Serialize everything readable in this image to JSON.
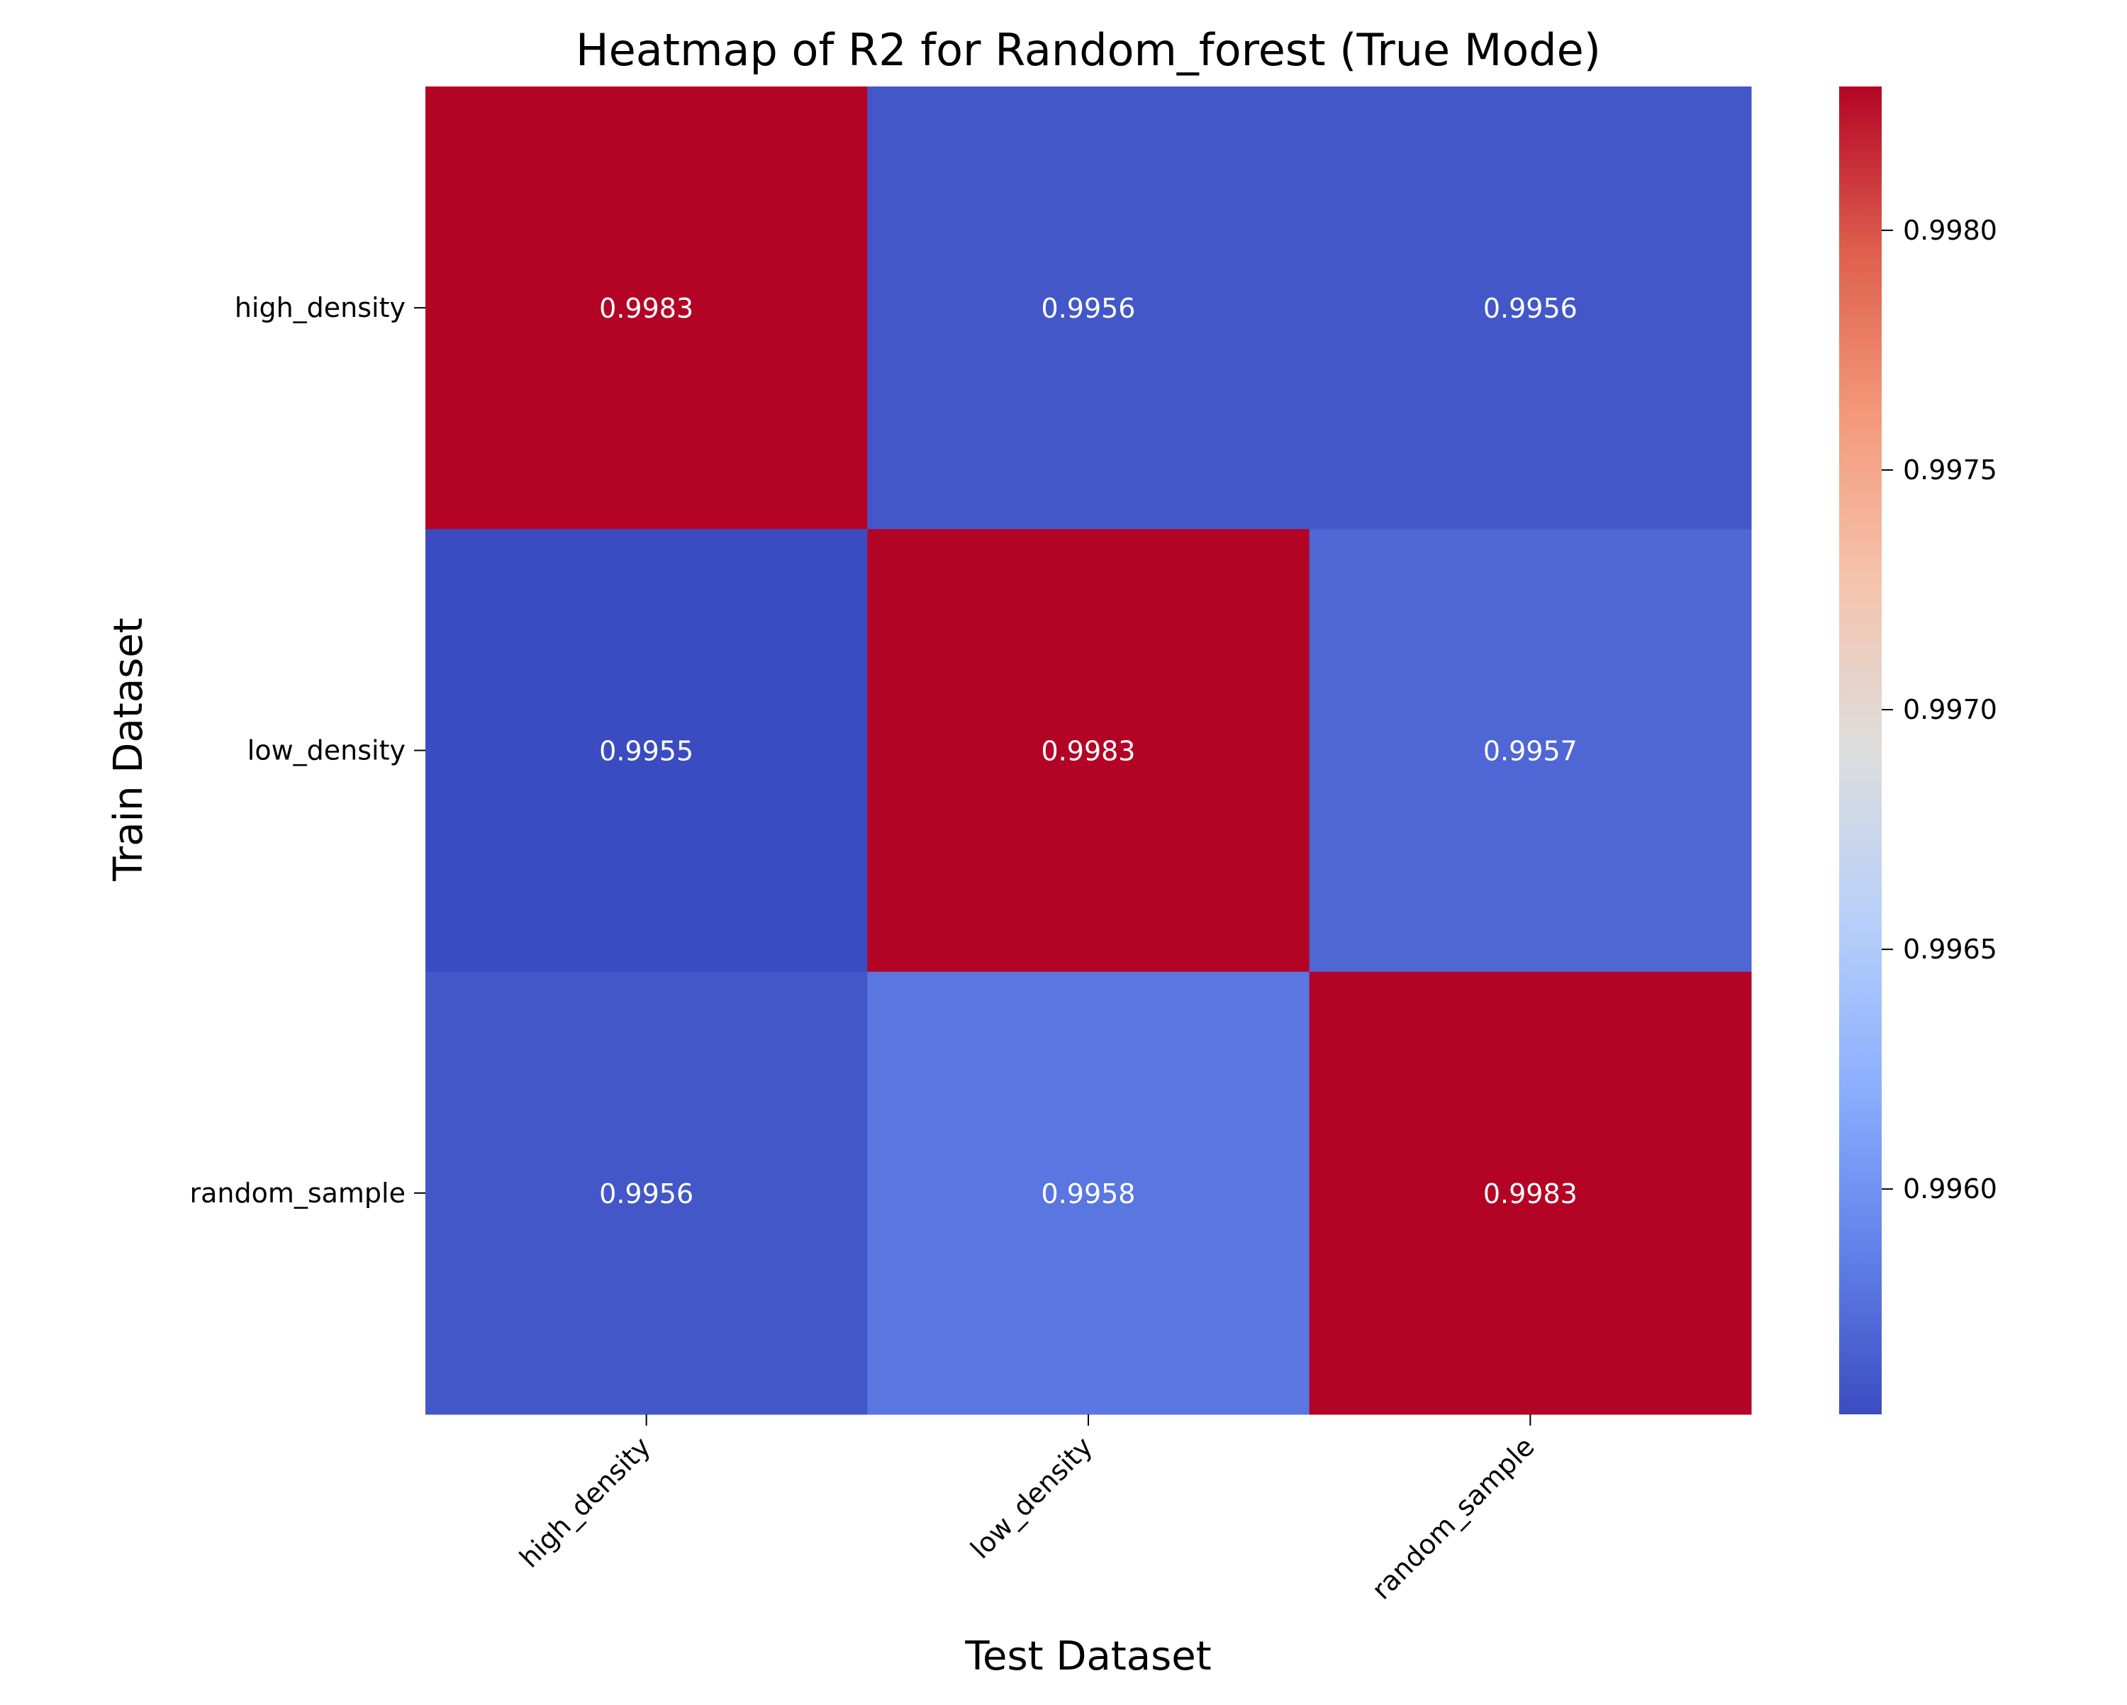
{
  "chart_data": {
    "type": "heatmap",
    "title": "Heatmap of R2 for Random_forest (True Mode)",
    "xlabel": "Test Dataset",
    "ylabel": "Train Dataset",
    "x_categories": [
      "high_density",
      "low_density",
      "random_sample"
    ],
    "y_categories": [
      "high_density",
      "low_density",
      "random_sample"
    ],
    "values": [
      [
        0.9983,
        0.9956,
        0.9956
      ],
      [
        0.9955,
        0.9983,
        0.9957
      ],
      [
        0.9956,
        0.9958,
        0.9983
      ]
    ],
    "value_labels": [
      [
        "0.9983",
        "0.9956",
        "0.9956"
      ],
      [
        "0.9955",
        "0.9983",
        "0.9957"
      ],
      [
        "0.9956",
        "0.9958",
        "0.9983"
      ]
    ],
    "colormap": "coolwarm",
    "colorbar": {
      "min": 0.99553,
      "max": 0.9983,
      "ticks": [
        0.996,
        0.9965,
        0.997,
        0.9975,
        0.998
      ],
      "tick_labels": [
        "0.9960",
        "0.9965",
        "0.9970",
        "0.9975",
        "0.9980"
      ]
    },
    "colors": {
      "low": "#3b4cc0",
      "high": "#b40426",
      "annotation_text": "#ffffff"
    }
  }
}
